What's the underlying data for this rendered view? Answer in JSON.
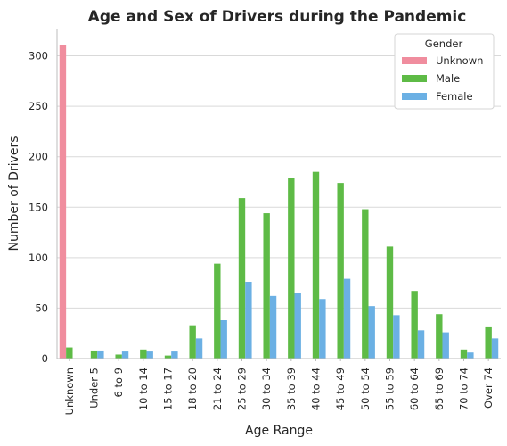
{
  "chart_data": {
    "type": "bar",
    "title": "Age and Sex of Drivers during the Pandemic",
    "xlabel": "Age Range",
    "ylabel": "Number of Drivers",
    "ylim": [
      0,
      327
    ],
    "yticks": [
      0,
      50,
      100,
      150,
      200,
      250,
      300
    ],
    "grid": "horizontal",
    "legend_title": "Gender",
    "legend_position": "top-right",
    "categories": [
      "Unknown",
      "Under 5",
      "6 to 9",
      "10 to 14",
      "15 to 17",
      "18 to 20",
      "21 to 24",
      "25 to 29",
      "30 to 34",
      "35 to 39",
      "40 to 44",
      "45 to 49",
      "50 to 54",
      "55 to 59",
      "60 to 64",
      "65 to 69",
      "70 to 74",
      "Over 74"
    ],
    "series": [
      {
        "name": "Unknown",
        "color": "#F08D9E",
        "values": [
          311,
          0,
          0,
          0,
          0,
          0,
          0,
          0,
          0,
          0,
          0,
          0,
          0,
          0,
          0,
          0,
          0,
          0
        ]
      },
      {
        "name": "Male",
        "color": "#5EBB46",
        "values": [
          11,
          8,
          4,
          9,
          3,
          33,
          94,
          159,
          144,
          179,
          185,
          174,
          148,
          111,
          67,
          44,
          9,
          31
        ]
      },
      {
        "name": "Female",
        "color": "#6BB0E4",
        "values": [
          0,
          8,
          7,
          7,
          7,
          20,
          38,
          76,
          62,
          65,
          59,
          79,
          52,
          43,
          28,
          26,
          6,
          20
        ]
      }
    ]
  }
}
